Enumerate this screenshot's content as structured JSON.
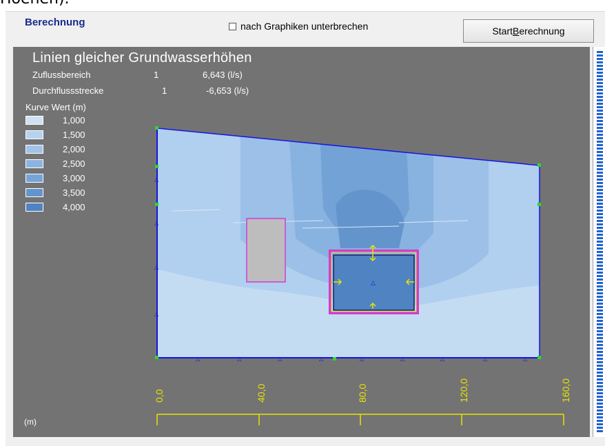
{
  "window": {
    "top_text": "Hoehen)."
  },
  "group": {
    "title": "Berechnung"
  },
  "checkbox": {
    "label": "nach Graphiken unterbrechen",
    "checked": false
  },
  "button": {
    "label_prefix": "Start ",
    "label_mnemonic": "B",
    "label_rest": "erechnung"
  },
  "plot": {
    "title": "Linien gleicher Grundwasserhöhen",
    "info": [
      {
        "name": "Zuflussbereich",
        "index": "1",
        "value": "6,643 (l/s)"
      },
      {
        "name": "Durchflussstrecke",
        "index": "1",
        "value": "-6,653 (l/s)"
      }
    ],
    "legend_header": "Kurve  Wert (m)",
    "legend": [
      {
        "value": "1,000",
        "color": "#cfe2f4"
      },
      {
        "value": "1,500",
        "color": "#b7d2ee"
      },
      {
        "value": "2,000",
        "color": "#a1c3e7"
      },
      {
        "value": "2,500",
        "color": "#8cb4df"
      },
      {
        "value": "3,000",
        "color": "#77a4d6"
      },
      {
        "value": "3,500",
        "color": "#6494cd"
      },
      {
        "value": "4,000",
        "color": "#4f83c2"
      }
    ],
    "axis_ticks": [
      "0,0",
      "40,0",
      "80,0",
      "120,0",
      "160,0"
    ],
    "unit": "(m)"
  },
  "colors": {
    "accent_blue": "#1a2a8c",
    "boundary": "#1414e6",
    "pit": "#d23cd2",
    "scale": "#e6e600"
  }
}
